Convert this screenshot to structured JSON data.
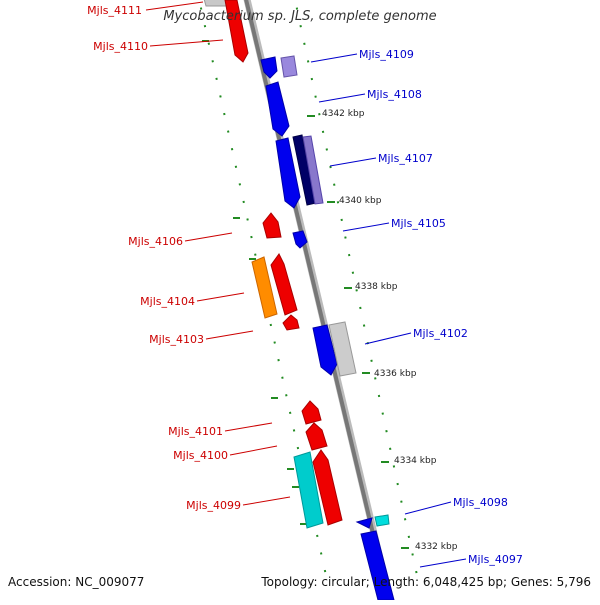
{
  "title": "Mycobacterium sp. JLS, complete genome",
  "footer": {
    "accession": "Accession: NC_009077",
    "summary": "Topology: circular; Length: 6,048,425 bp; Genes: 5,796"
  },
  "colors": {
    "forward_label": "#0000cc",
    "reverse_label": "#cc0000",
    "tick": "#228b22",
    "backbone": "#777777"
  },
  "tick_labels": [
    "4342 kbp",
    "4340 kbp",
    "4338 kbp",
    "4336 kbp",
    "4334 kbp",
    "4332 kbp"
  ],
  "genes": [
    {
      "id": "Mjls_4111",
      "label": "Mjls_4111",
      "strand": "reverse"
    },
    {
      "id": "Mjls_4110",
      "label": "Mjls_4110",
      "strand": "reverse"
    },
    {
      "id": "Mjls_4109",
      "label": "Mjls_4109",
      "strand": "forward"
    },
    {
      "id": "Mjls_4108",
      "label": "Mjls_4108",
      "strand": "forward"
    },
    {
      "id": "Mjls_4107",
      "label": "Mjls_4107",
      "strand": "forward"
    },
    {
      "id": "Mjls_4106",
      "label": "Mjls_4106",
      "strand": "reverse"
    },
    {
      "id": "Mjls_4105",
      "label": "Mjls_4105",
      "strand": "forward"
    },
    {
      "id": "Mjls_4104",
      "label": "Mjls_4104",
      "strand": "reverse"
    },
    {
      "id": "Mjls_4103",
      "label": "Mjls_4103",
      "strand": "reverse"
    },
    {
      "id": "Mjls_4102",
      "label": "Mjls_4102",
      "strand": "forward"
    },
    {
      "id": "Mjls_4101",
      "label": "Mjls_4101",
      "strand": "reverse"
    },
    {
      "id": "Mjls_4100",
      "label": "Mjls_4100",
      "strand": "reverse"
    },
    {
      "id": "Mjls_4099",
      "label": "Mjls_4099",
      "strand": "reverse"
    },
    {
      "id": "Mjls_4098",
      "label": "Mjls_4098",
      "strand": "forward"
    },
    {
      "id": "Mjls_4097",
      "label": "Mjls_4097",
      "strand": "forward"
    }
  ]
}
